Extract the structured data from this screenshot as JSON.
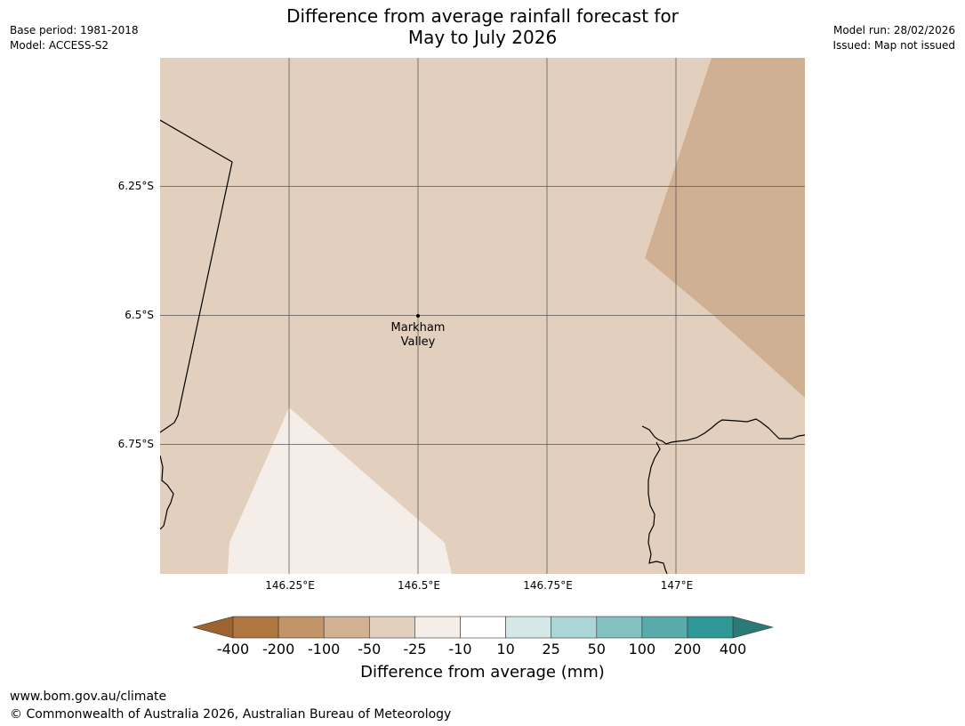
{
  "header": {
    "title_line1": "Difference from average rainfall forecast for",
    "title_line2": "May to July 2026",
    "base_period": "Base period: 1981-2018",
    "model": "Model: ACCESS-S2",
    "model_run": "Model run: 28/02/2026",
    "issued": "Issued: Map not issued"
  },
  "map": {
    "lat_labels": [
      "6.25°S",
      "6.5°S",
      "6.75°S"
    ],
    "lon_labels": [
      "146.25°E",
      "146.5°E",
      "146.75°E",
      "147°E"
    ],
    "place_label_line1": "Markham",
    "place_label_line2": "Valley",
    "region_colors": {
      "background": "#e2cfbe",
      "drier": "#d0b092",
      "near_average": "#f5ede7"
    }
  },
  "legend": {
    "title": "Difference from average (mm)",
    "ticks": [
      "-400",
      "-200",
      "-100",
      "-50",
      "-25",
      "-10",
      "10",
      "25",
      "50",
      "100",
      "200",
      "400"
    ],
    "colors": [
      "#9c6431",
      "#af763f",
      "#c29468",
      "#d2b193",
      "#e2cfbe",
      "#f5ede7",
      "#ffffff",
      "#d5e8e8",
      "#acd6d6",
      "#82c1c0",
      "#59abab",
      "#2f9896",
      "#2b7a78"
    ]
  },
  "footer": {
    "url": "www.bom.gov.au/climate",
    "copyright": "© Commonwealth of Australia 2026, Australian Bureau of Meteorology"
  }
}
